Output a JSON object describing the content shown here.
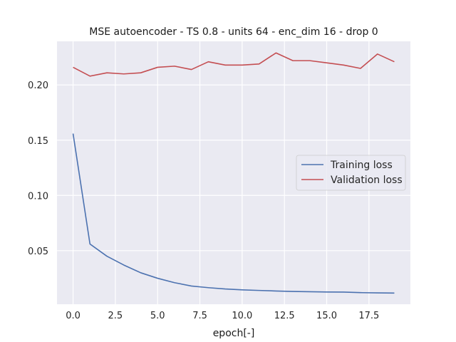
{
  "chart_data": {
    "type": "line",
    "title": "MSE autoencoder - TS 0.8 - units 64 - enc_dim 16 - drop 0",
    "xlabel": "epoch[-]",
    "ylabel": "",
    "xlim": [
      -0.95,
      19.95
    ],
    "ylim": [
      0.0015,
      0.2395
    ],
    "x_ticks": [
      0.0,
      2.5,
      5.0,
      7.5,
      10.0,
      12.5,
      15.0,
      17.5
    ],
    "x_tick_labels": [
      "0.0",
      "2.5",
      "5.0",
      "7.5",
      "10.0",
      "12.5",
      "15.0",
      "17.5"
    ],
    "y_ticks": [
      0.05,
      0.1,
      0.15,
      0.2
    ],
    "y_tick_labels": [
      "0.05",
      "0.10",
      "0.15",
      "0.20"
    ],
    "grid": true,
    "background": "#eaeaf2",
    "legend_position": "center-right",
    "x": [
      0,
      1,
      2,
      3,
      4,
      5,
      6,
      7,
      8,
      9,
      10,
      11,
      12,
      13,
      14,
      15,
      16,
      17,
      18,
      19
    ],
    "series": [
      {
        "name": "Training loss",
        "color": "#4c72b0",
        "values": [
          0.156,
          0.056,
          0.045,
          0.037,
          0.03,
          0.025,
          0.021,
          0.018,
          0.0165,
          0.0153,
          0.0145,
          0.014,
          0.0135,
          0.0131,
          0.0128,
          0.0126,
          0.0125,
          0.012,
          0.0118,
          0.0116
        ]
      },
      {
        "name": "Validation loss",
        "color": "#c44e52",
        "values": [
          0.216,
          0.208,
          0.211,
          0.21,
          0.211,
          0.216,
          0.217,
          0.214,
          0.221,
          0.218,
          0.218,
          0.219,
          0.229,
          0.222,
          0.222,
          0.22,
          0.218,
          0.215,
          0.228,
          0.221
        ]
      }
    ]
  }
}
